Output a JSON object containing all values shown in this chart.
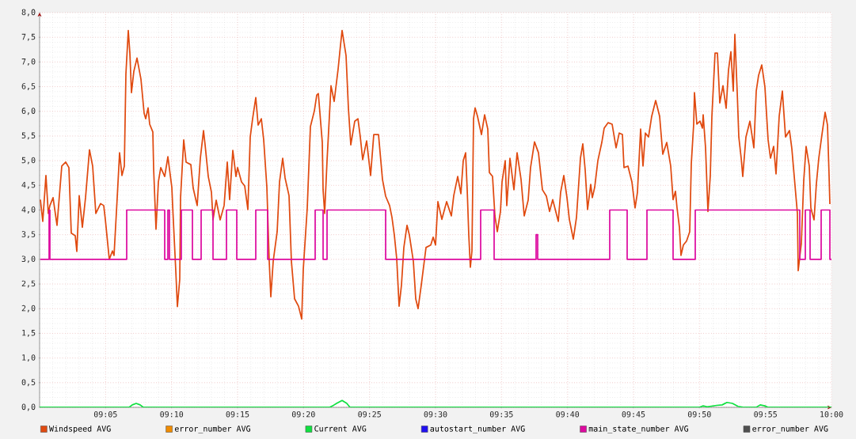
{
  "chart_data": {
    "type": "line",
    "xlim": [
      9.0,
      10.0
    ],
    "xticks": [
      {
        "value": 9.0833,
        "label": "09:05"
      },
      {
        "value": 9.1667,
        "label": "09:10"
      },
      {
        "value": 9.25,
        "label": "09:15"
      },
      {
        "value": 9.3333,
        "label": "09:20"
      },
      {
        "value": 9.4167,
        "label": "09:25"
      },
      {
        "value": 9.5,
        "label": "09:30"
      },
      {
        "value": 9.5833,
        "label": "09:35"
      },
      {
        "value": 9.6667,
        "label": "09:40"
      },
      {
        "value": 9.75,
        "label": "09:45"
      },
      {
        "value": 9.8333,
        "label": "09:50"
      },
      {
        "value": 9.9167,
        "label": "09:55"
      },
      {
        "value": 10.0,
        "label": "10:00"
      }
    ],
    "ylim": [
      0,
      8
    ],
    "yticks": [
      {
        "value": 0,
        "label": "0,0"
      },
      {
        "value": 0.5,
        "label": "0,5"
      },
      {
        "value": 1,
        "label": "1,0"
      },
      {
        "value": 1.5,
        "label": "1,5"
      },
      {
        "value": 2,
        "label": "2,0"
      },
      {
        "value": 2.5,
        "label": "2,5"
      },
      {
        "value": 3,
        "label": "3,0"
      },
      {
        "value": 3.5,
        "label": "3,5"
      },
      {
        "value": 4,
        "label": "4,0"
      },
      {
        "value": 4.5,
        "label": "4,5"
      },
      {
        "value": 5,
        "label": "5,0"
      },
      {
        "value": 5.5,
        "label": "5,5"
      },
      {
        "value": 6,
        "label": "6,0"
      },
      {
        "value": 6.5,
        "label": "6,5"
      },
      {
        "value": 7,
        "label": "7,0"
      },
      {
        "value": 7.5,
        "label": "7,5"
      },
      {
        "value": 8,
        "label": "8,0"
      }
    ],
    "grid": true,
    "legend": "bottom",
    "series": [
      {
        "name": "Windspeed AVG",
        "color": "#e04a10",
        "x": [
          9.001,
          9.004,
          9.008,
          9.011,
          9.013,
          9.017,
          9.022,
          9.028,
          9.033,
          9.037,
          9.04,
          9.045,
          9.047,
          9.05,
          9.054,
          9.058,
          9.063,
          9.067,
          9.071,
          9.077,
          9.081,
          9.083,
          9.088,
          9.092,
          9.094,
          9.098,
          9.101,
          9.104,
          9.107,
          9.109,
          9.112,
          9.114,
          9.116,
          9.119,
          9.123,
          9.128,
          9.132,
          9.134,
          9.137,
          9.139,
          9.143,
          9.144,
          9.147,
          9.15,
          9.153,
          9.158,
          9.162,
          9.167,
          9.168,
          9.172,
          9.174,
          9.177,
          9.178,
          9.182,
          9.185,
          9.191,
          9.194,
          9.199,
          9.203,
          9.207,
          9.209,
          9.213,
          9.217,
          9.219,
          9.223,
          9.228,
          9.233,
          9.237,
          9.24,
          9.244,
          9.248,
          9.25,
          9.255,
          9.259,
          9.263,
          9.266,
          9.269,
          9.273,
          9.276,
          9.28,
          9.283,
          9.287,
          9.29,
          9.292,
          9.295,
          9.3,
          9.303,
          9.307,
          9.31,
          9.315,
          9.318,
          9.322,
          9.327,
          9.331,
          9.333,
          9.338,
          9.342,
          9.347,
          9.35,
          9.352,
          9.357,
          9.358,
          9.36,
          9.363,
          9.368,
          9.372,
          9.377,
          9.38,
          9.382,
          9.387,
          9.39,
          9.393,
          9.398,
          9.402,
          9.405,
          9.408,
          9.413,
          9.418,
          9.422,
          9.428,
          9.433,
          9.437,
          9.442,
          9.445,
          9.448,
          9.451,
          9.454,
          9.457,
          9.46,
          9.464,
          9.467,
          9.472,
          9.475,
          9.478,
          9.482,
          9.488,
          9.494,
          9.497,
          9.5,
          9.503,
          9.508,
          9.514,
          9.52,
          9.523,
          9.528,
          9.532,
          9.535,
          9.538,
          9.54,
          9.542,
          9.544,
          9.546,
          9.548,
          9.55,
          9.553,
          9.558,
          9.562,
          9.566,
          9.568,
          9.572,
          9.575,
          9.578,
          9.582,
          9.584,
          9.588,
          9.59,
          9.594,
          9.599,
          9.603,
          9.608,
          9.612,
          9.617,
          9.62,
          9.625,
          9.63,
          9.635,
          9.64,
          9.644,
          9.648,
          9.655,
          9.658,
          9.662,
          9.666,
          9.669,
          9.674,
          9.678,
          9.683,
          9.686,
          9.689,
          9.692,
          9.696,
          9.698,
          9.701,
          9.705,
          9.71,
          9.713,
          9.718,
          9.723,
          9.728,
          9.732,
          9.736,
          9.738,
          9.743,
          9.748,
          9.752,
          9.755,
          9.759,
          9.762,
          9.765,
          9.769,
          9.773,
          9.778,
          9.783,
          9.787,
          9.792,
          9.797,
          9.8,
          9.803,
          9.805,
          9.808,
          9.81,
          9.813,
          9.817,
          9.821,
          9.823,
          9.826,
          9.827,
          9.83,
          9.834,
          9.837,
          9.838,
          9.841,
          9.844,
          9.847,
          9.849,
          9.853,
          9.856,
          9.859,
          9.863,
          9.867,
          9.87,
          9.873,
          9.876,
          9.878,
          9.881,
          9.883,
          9.886,
          9.888,
          9.892,
          9.897,
          9.902,
          9.905,
          9.908,
          9.912,
          9.916,
          9.92,
          9.923,
          9.927,
          9.93,
          9.934,
          9.938,
          9.942,
          9.947,
          9.95,
          9.953,
          9.957,
          9.958,
          9.962,
          9.965,
          9.968,
          9.972,
          9.974,
          9.978,
          9.981,
          9.984,
          9.988,
          9.992,
          9.995,
          9.997,
          9.998
        ],
        "values": [
          4.21,
          3.77,
          4.7,
          3.93,
          4.09,
          4.25,
          3.69,
          4.89,
          4.97,
          4.86,
          3.53,
          3.48,
          3.16,
          4.29,
          3.65,
          4.25,
          5.22,
          4.89,
          3.93,
          4.13,
          4.09,
          3.81,
          3.0,
          3.17,
          3.08,
          4.25,
          5.16,
          4.7,
          4.89,
          6.76,
          7.64,
          7.18,
          6.38,
          6.81,
          7.08,
          6.65,
          5.96,
          5.85,
          6.07,
          5.74,
          5.58,
          4.84,
          3.61,
          4.57,
          4.86,
          4.68,
          5.08,
          4.46,
          4.09,
          2.76,
          2.04,
          2.6,
          4.25,
          5.42,
          4.97,
          4.92,
          4.44,
          4.09,
          5.05,
          5.61,
          5.32,
          4.68,
          4.36,
          3.8,
          4.2,
          3.8,
          4.09,
          4.97,
          4.21,
          5.21,
          4.68,
          4.86,
          4.57,
          4.49,
          4.01,
          5.48,
          5.85,
          6.28,
          5.72,
          5.85,
          5.42,
          4.46,
          2.96,
          2.24,
          2.96,
          3.56,
          4.57,
          5.05,
          4.65,
          4.29,
          2.96,
          2.2,
          2.05,
          1.79,
          2.8,
          4.04,
          5.69,
          6.01,
          6.33,
          6.36,
          5.37,
          4.41,
          3.93,
          5.0,
          6.52,
          6.2,
          6.86,
          7.34,
          7.64,
          7.13,
          6.06,
          5.32,
          5.8,
          5.85,
          5.48,
          5.02,
          5.4,
          4.7,
          5.53,
          5.53,
          4.62,
          4.28,
          4.09,
          3.85,
          3.49,
          3.01,
          2.05,
          2.48,
          3.24,
          3.69,
          3.49,
          2.96,
          2.2,
          2.0,
          2.48,
          3.24,
          3.29,
          3.45,
          3.29,
          4.17,
          3.81,
          4.17,
          3.88,
          4.29,
          4.68,
          4.33,
          5.0,
          5.16,
          4.41,
          3.49,
          2.84,
          3.17,
          5.85,
          6.07,
          5.9,
          5.53,
          5.93,
          5.64,
          4.76,
          4.68,
          3.88,
          3.56,
          3.97,
          4.57,
          5.0,
          4.09,
          5.05,
          4.41,
          5.16,
          4.62,
          3.88,
          4.2,
          4.86,
          5.38,
          5.16,
          4.41,
          4.28,
          3.97,
          4.21,
          3.77,
          4.36,
          4.7,
          4.25,
          3.81,
          3.41,
          3.85,
          5.05,
          5.34,
          4.81,
          4.01,
          4.52,
          4.25,
          4.46,
          5.0,
          5.37,
          5.66,
          5.77,
          5.74,
          5.26,
          5.56,
          5.53,
          4.86,
          4.89,
          4.57,
          4.04,
          4.36,
          5.64,
          4.89,
          5.56,
          5.48,
          5.9,
          6.22,
          5.9,
          5.13,
          5.37,
          4.89,
          4.21,
          4.38,
          4.04,
          3.65,
          3.08,
          3.29,
          3.37,
          3.56,
          4.94,
          5.74,
          6.38,
          5.74,
          5.8,
          5.66,
          5.93,
          5.26,
          3.97,
          4.7,
          5.9,
          7.18,
          7.18,
          6.17,
          6.52,
          6.06,
          6.84,
          7.21,
          6.41,
          7.56,
          6.38,
          5.48,
          5.05,
          4.68,
          5.48,
          5.8,
          5.26,
          6.41,
          6.73,
          6.94,
          6.49,
          5.42,
          5.05,
          5.29,
          4.73,
          5.9,
          6.41,
          5.48,
          5.61,
          5.24,
          4.68,
          3.93,
          2.77,
          3.33,
          4.6,
          5.29,
          4.89,
          4.04,
          3.8,
          4.54,
          5.05,
          5.53,
          5.98,
          5.72,
          4.7,
          4.12
        ]
      },
      {
        "name": "error_number AVG",
        "color": "#f08c00"
      },
      {
        "name": "Current AVG",
        "color": "#10e040",
        "x": [
          9.0,
          9.113,
          9.117,
          9.122,
          9.127,
          9.131,
          9.366,
          9.37,
          9.375,
          9.382,
          9.388,
          9.392,
          9.833,
          9.838,
          9.843,
          9.855,
          9.862,
          9.868,
          9.875,
          9.882,
          9.89,
          9.905,
          9.91,
          9.916,
          9.92,
          10.0
        ],
        "values": [
          0,
          0,
          0.05,
          0.08,
          0.05,
          0,
          0,
          0.03,
          0.08,
          0.14,
          0.08,
          0,
          0,
          0.03,
          0.01,
          0.04,
          0.05,
          0.1,
          0.08,
          0.02,
          0,
          0,
          0.05,
          0.03,
          0,
          0
        ]
      },
      {
        "name": "autostart_number AVG",
        "color": "#2010f0"
      },
      {
        "name": "main_state_number AVG",
        "type": "step",
        "color": "#dd0a9f",
        "x": [
          9.001,
          9.012,
          9.013,
          9.11,
          9.158,
          9.162,
          9.164,
          9.179,
          9.193,
          9.204,
          9.219,
          9.236,
          9.249,
          9.273,
          9.288,
          9.348,
          9.358,
          9.363,
          9.437,
          9.557,
          9.574,
          9.627,
          9.629,
          9.72,
          9.742,
          9.767,
          9.8,
          9.828,
          9.96,
          9.967,
          9.973,
          9.987,
          9.998,
          10.0
        ],
        "values": [
          3,
          4,
          3,
          4,
          3,
          4,
          3,
          4,
          3,
          4,
          3,
          4,
          3,
          4,
          3,
          4,
          3,
          4,
          3,
          4,
          3,
          3.5,
          3,
          4,
          3,
          4,
          3,
          4,
          3,
          4,
          3,
          4,
          3,
          3
        ]
      },
      {
        "name": "error_number AVG",
        "color": "#505050"
      }
    ]
  }
}
